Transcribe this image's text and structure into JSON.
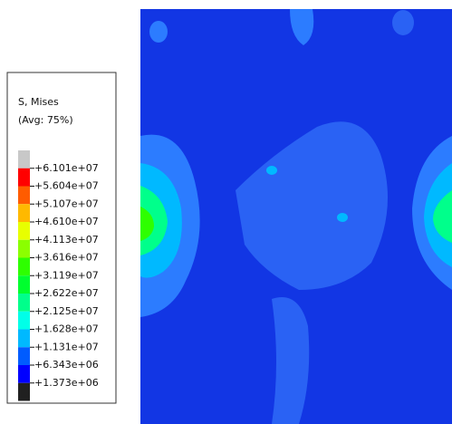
{
  "legend": {
    "title": "S, Mises",
    "subtitle": "(Avg: 75%)",
    "labels": [
      "+6.101e+07",
      "+5.604e+07",
      "+5.107e+07",
      "+4.610e+07",
      "+4.113e+07",
      "+3.616e+07",
      "+3.119e+07",
      "+2.622e+07",
      "+2.125e+07",
      "+1.628e+07",
      "+1.131e+07",
      "+6.343e+06",
      "+1.373e+06"
    ],
    "colors": [
      "#c8c8c8",
      "#ff0000",
      "#ff5c00",
      "#ffb900",
      "#e8ff00",
      "#8bff00",
      "#2eff00",
      "#00ff2e",
      "#00ff8b",
      "#00ffe8",
      "#00b9ff",
      "#005cff",
      "#0000ff",
      "#202020"
    ]
  }
}
